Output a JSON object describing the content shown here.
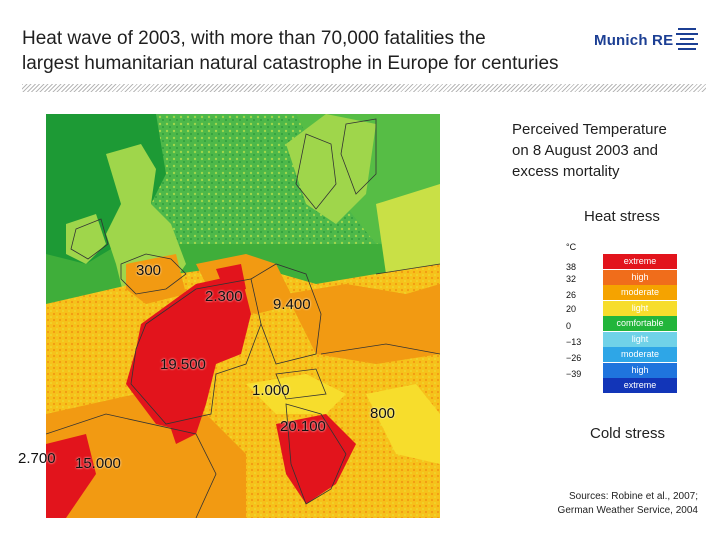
{
  "header": {
    "title_line1": "Heat wave of 2003, with more than 70,000 fatalities the",
    "title_line2": "largest humanitarian natural catastrophe in Europe for centuries",
    "logo_text": "Munich RE"
  },
  "side": {
    "caption_line1": "Perceived Temperature",
    "caption_line2": "on 8 August 2003 and",
    "caption_line3": "excess mortality",
    "heat_stress": "Heat stress",
    "cold_stress": "Cold stress"
  },
  "legend": {
    "unit": "°C",
    "ticks": [
      "38",
      "32",
      "26",
      "20",
      "0",
      "−13",
      "−26",
      "−39"
    ],
    "bands": [
      {
        "label": "extreme",
        "color": "#e2141c"
      },
      {
        "label": "high",
        "color": "#f06d1b"
      },
      {
        "label": "moderate",
        "color": "#f5a300"
      },
      {
        "label": "light",
        "color": "#f7dd2c"
      },
      {
        "label": "comfortable",
        "color": "#22b53b"
      },
      {
        "label": "light",
        "color": "#70d2e8"
      },
      {
        "label": "moderate",
        "color": "#2ea6e7"
      },
      {
        "label": "high",
        "color": "#1f74dd"
      },
      {
        "label": "extreme",
        "color": "#1235b8"
      }
    ]
  },
  "map_labels": {
    "uk": "300",
    "netherlands": "2.300",
    "germany": "9.400",
    "france": "19.500",
    "switzerland": "1.000",
    "italy": "20.100",
    "austria": "800",
    "portugal": "2.700",
    "spain": "15.000"
  },
  "sources": {
    "line1": "Sources: Robine et al., 2007;",
    "line2": "German Weather Service, 2004"
  }
}
